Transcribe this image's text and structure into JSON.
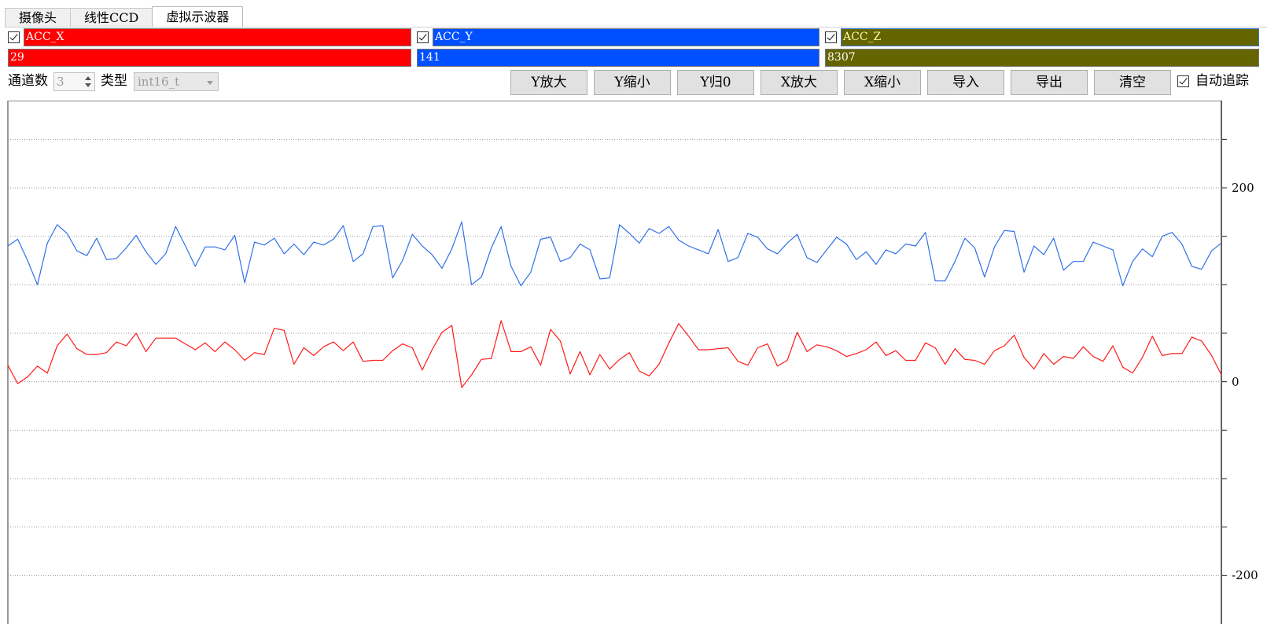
{
  "tabs": [
    {
      "label": "摄像头",
      "active": false
    },
    {
      "label": "线性CCD",
      "active": false
    },
    {
      "label": "虚拟示波器",
      "active": true
    }
  ],
  "channels": [
    {
      "name": "ACC_X",
      "value": "29",
      "color": "#ff0000",
      "checked": true
    },
    {
      "name": "ACC_Y",
      "value": "141",
      "color": "#0050ff",
      "checked": true
    },
    {
      "name": "ACC_Z",
      "value": "8307",
      "color": "#646400",
      "checked": true
    }
  ],
  "toolbar": {
    "channel_count_label": "通道数",
    "channel_count_value": "3",
    "type_label": "类型",
    "type_value": "int16_t",
    "buttons": [
      "Y放大",
      "Y缩小",
      "Y归0",
      "X放大",
      "X缩小",
      "导入",
      "导出",
      "清空"
    ],
    "auto_track_label": "自动追踪",
    "auto_track_checked": true
  },
  "chart_data": {
    "type": "line",
    "ylim": [
      -250,
      290
    ],
    "yticks": [
      200,
      0,
      -200
    ],
    "grid": true,
    "series": [
      {
        "name": "ACC_Y",
        "color": "#3070e8",
        "values": [
          140,
          147,
          125,
          100,
          143,
          162,
          153,
          135,
          130,
          148,
          126,
          127,
          138,
          151,
          134,
          121,
          132,
          160,
          140,
          119,
          139,
          139,
          136,
          151,
          102,
          144,
          141,
          148,
          132,
          142,
          131,
          144,
          141,
          147,
          161,
          124,
          132,
          160,
          161,
          107,
          125,
          152,
          140,
          131,
          117,
          137,
          165,
          100,
          108,
          138,
          160,
          119,
          99,
          113,
          147,
          149,
          124,
          128,
          142,
          136,
          106,
          107,
          162,
          153,
          143,
          158,
          153,
          160,
          146,
          140,
          136,
          132,
          157,
          124,
          128,
          153,
          149,
          137,
          132,
          143,
          152,
          128,
          123,
          136,
          149,
          142,
          126,
          134,
          121,
          136,
          132,
          142,
          140,
          154,
          104,
          104,
          124,
          148,
          138,
          108,
          139,
          156,
          155,
          113,
          140,
          131,
          148,
          115,
          124,
          124,
          144,
          140,
          136,
          99,
          124,
          137,
          129,
          150,
          154,
          142,
          119,
          116,
          135,
          143
        ]
      },
      {
        "name": "ACC_X",
        "color": "#ff1a1a",
        "values": [
          17,
          -2,
          5,
          16,
          9,
          37,
          49,
          34,
          28,
          28,
          30,
          41,
          37,
          50,
          31,
          45,
          45,
          45,
          39,
          33,
          40,
          31,
          41,
          33,
          22,
          30,
          28,
          55,
          53,
          18,
          35,
          27,
          36,
          41,
          32,
          41,
          21,
          22,
          22,
          32,
          39,
          35,
          12,
          33,
          51,
          58,
          -6,
          7,
          23,
          24,
          63,
          31,
          31,
          36,
          17,
          54,
          42,
          8,
          31,
          7,
          28,
          13,
          23,
          30,
          11,
          6,
          18,
          40,
          60,
          47,
          33,
          33,
          34,
          35,
          21,
          17,
          35,
          39,
          16,
          22,
          51,
          31,
          38,
          36,
          32,
          26,
          29,
          33,
          41,
          27,
          32,
          22,
          22,
          40,
          35,
          18,
          34,
          23,
          22,
          18,
          32,
          37,
          48,
          25,
          13,
          29,
          18,
          26,
          24,
          36,
          26,
          21,
          37,
          15,
          9,
          25,
          47,
          27,
          29,
          29,
          46,
          42,
          27,
          7
        ]
      }
    ]
  }
}
